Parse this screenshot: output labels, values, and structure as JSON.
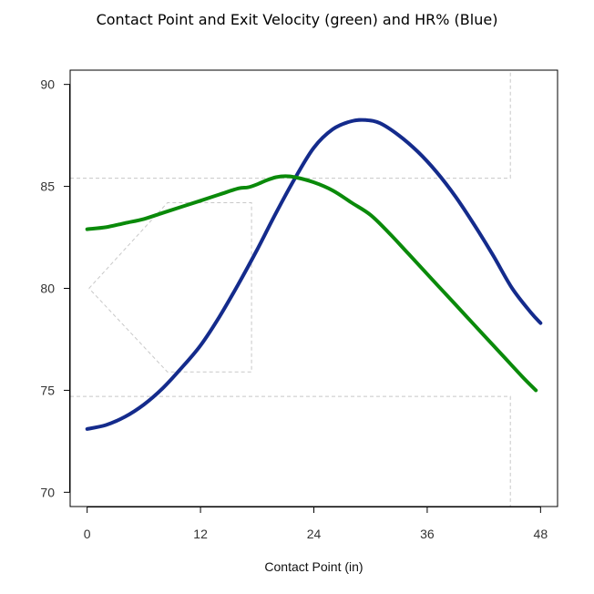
{
  "chart_data": {
    "type": "line",
    "title": "Contact Point and Exit Velocity (green) and HR% (Blue)",
    "xlabel": "Contact Point (in)",
    "ylabel": "",
    "xlim": [
      -1.8,
      49.8
    ],
    "ylim": [
      69.3,
      90.7
    ],
    "x_ticks": [
      0,
      12,
      24,
      36,
      48
    ],
    "y_ticks": [
      70,
      75,
      80,
      85,
      90
    ],
    "grid": false,
    "colors": {
      "green": "#0a8a0a",
      "blue": "#142b8c",
      "overlay": "#c8c8c8"
    },
    "series": [
      {
        "color": "blue",
        "x": [
          0,
          2,
          4,
          6,
          8,
          10,
          12,
          14,
          16,
          18,
          20,
          22,
          24,
          26,
          28,
          29.5,
          31,
          33,
          35,
          37,
          39,
          41,
          43,
          45,
          47,
          48
        ],
        "y": [
          73.1,
          73.3,
          73.7,
          74.3,
          75.1,
          76.1,
          77.2,
          78.6,
          80.2,
          81.9,
          83.7,
          85.4,
          86.9,
          87.8,
          88.2,
          88.25,
          88.1,
          87.5,
          86.7,
          85.7,
          84.5,
          83.1,
          81.6,
          80.0,
          78.8,
          78.3
        ]
      },
      {
        "color": "green",
        "x": [
          0,
          2,
          4,
          6,
          8,
          10,
          12,
          14,
          16,
          17,
          18,
          19,
          20,
          21,
          22,
          24,
          26,
          28,
          30,
          32,
          34,
          36,
          38,
          40,
          42,
          44,
          46,
          47.5
        ],
        "y": [
          82.9,
          83.0,
          83.2,
          83.4,
          83.7,
          84.0,
          84.3,
          84.6,
          84.9,
          84.95,
          85.1,
          85.3,
          85.45,
          85.5,
          85.45,
          85.2,
          84.8,
          84.2,
          83.6,
          82.7,
          81.7,
          80.7,
          79.7,
          78.7,
          77.7,
          76.7,
          75.7,
          75.0
        ]
      }
    ],
    "overlays": [
      {
        "kind": "pentagon",
        "points": [
          [
            0.2,
            80.0
          ],
          [
            8.5,
            84.2
          ],
          [
            17.4,
            84.2
          ],
          [
            17.4,
            75.9
          ],
          [
            8.5,
            75.9
          ],
          [
            0.2,
            80.0
          ]
        ]
      },
      {
        "kind": "polyline",
        "points": [
          [
            -1.8,
            85.4
          ],
          [
            44.8,
            85.4
          ],
          [
            44.8,
            90.7
          ]
        ]
      },
      {
        "kind": "polyline",
        "points": [
          [
            -1.8,
            74.7
          ],
          [
            44.8,
            74.7
          ],
          [
            44.8,
            69.3
          ]
        ]
      }
    ]
  }
}
